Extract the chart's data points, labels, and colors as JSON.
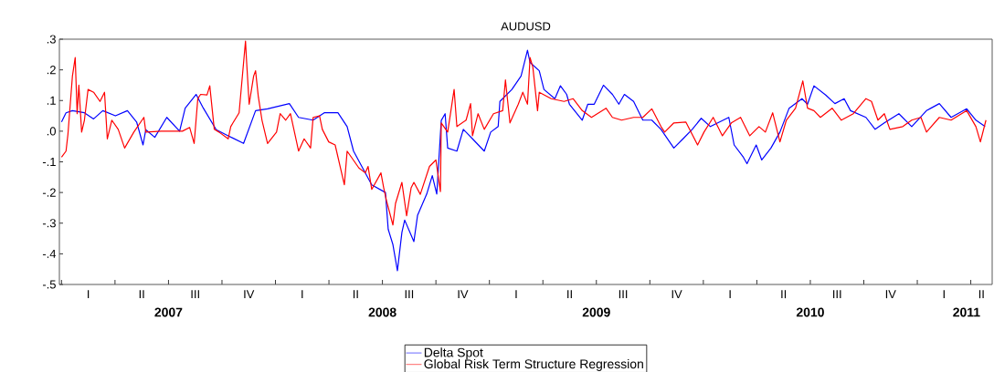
{
  "chart_data": {
    "type": "line",
    "title": "AUDUSD",
    "xlim": [
      2006.99,
      2011.35
    ],
    "ylim": [
      -0.5,
      0.3
    ],
    "yticks": [
      {
        "value": 0.3,
        "label": ".3"
      },
      {
        "value": 0.2,
        "label": ".2"
      },
      {
        "value": 0.1,
        "label": ".1"
      },
      {
        "value": 0.0,
        "label": ".0"
      },
      {
        "value": -0.1,
        "label": "-.1"
      },
      {
        "value": -0.2,
        "label": "-.2"
      },
      {
        "value": -0.3,
        "label": "-.3"
      },
      {
        "value": -0.4,
        "label": "-.4"
      },
      {
        "value": -0.5,
        "label": "-.5"
      }
    ],
    "xticks": [
      {
        "value": 2007.5,
        "label": "2007"
      },
      {
        "value": 2008.5,
        "label": "2008"
      },
      {
        "value": 2009.5,
        "label": "2009"
      },
      {
        "value": 2010.5,
        "label": "2010"
      },
      {
        "value": 2011.23,
        "label": "2011"
      },
      {
        "value": 2007.0,
        "label": null
      },
      {
        "value": 2007.25,
        "label": null
      },
      {
        "value": 2007.75,
        "label": null
      },
      {
        "value": 2008.0,
        "label": null
      },
      {
        "value": 2008.25,
        "label": null
      },
      {
        "value": 2008.75,
        "label": null
      },
      {
        "value": 2009.0,
        "label": null
      },
      {
        "value": 2009.25,
        "label": null
      },
      {
        "value": 2009.75,
        "label": null
      },
      {
        "value": 2010.0,
        "label": null
      },
      {
        "value": 2010.25,
        "label": null
      },
      {
        "value": 2010.75,
        "label": null
      },
      {
        "value": 2011.0,
        "label": null
      },
      {
        "value": 2011.25,
        "label": null
      },
      {
        "value": 2007.5,
        "label": null
      },
      {
        "value": 2008.5,
        "label": null
      },
      {
        "value": 2009.5,
        "label": null
      },
      {
        "value": 2010.5,
        "label": null
      }
    ],
    "annotations": [
      "I",
      "II",
      "III",
      "IV",
      "I",
      "II",
      "III",
      "IV",
      "I",
      "II",
      "III",
      "IV",
      "I",
      "II",
      "III",
      "IV",
      "I",
      "II"
    ],
    "legend": "bottom",
    "line_style": "solid",
    "series": [
      {
        "name": "Delta Spot",
        "color": "#0000ff",
        "x": [
          2007.0,
          2007.021,
          2007.051,
          2007.107,
          2007.15,
          2007.193,
          2007.252,
          2007.308,
          2007.351,
          2007.381,
          2007.394,
          2007.436,
          2007.492,
          2007.552,
          2007.578,
          2007.629,
          2007.663,
          2007.723,
          2007.779,
          2007.851,
          2007.907,
          2007.963,
          2008.065,
          2008.108,
          2008.176,
          2008.228,
          2008.292,
          2008.335,
          2008.365,
          2008.45,
          2008.514,
          2008.527,
          2008.549,
          2008.57,
          2008.591,
          2008.604,
          2008.647,
          2008.664,
          2008.707,
          2008.733,
          2008.754,
          2008.775,
          2008.793,
          2008.805,
          2008.848,
          2008.878,
          2008.921,
          2008.976,
          2009.006,
          2009.041,
          2009.049,
          2009.105,
          2009.148,
          2009.178,
          2009.19,
          2009.233,
          2009.255,
          2009.306,
          2009.332,
          2009.361,
          2009.374,
          2009.434,
          2009.46,
          2009.49,
          2009.533,
          2009.575,
          2009.605,
          2009.631,
          2009.674,
          2009.717,
          2009.759,
          2009.802,
          2009.862,
          2009.905,
          2009.948,
          2009.99,
          2010.033,
          2010.076,
          2010.119,
          2010.144,
          2010.187,
          2010.204,
          2010.247,
          2010.273,
          2010.316,
          2010.358,
          2010.401,
          2010.461,
          2010.487,
          2010.517,
          2010.572,
          2010.615,
          2010.658,
          2010.688,
          2010.76,
          2010.803,
          2010.846,
          2010.914,
          2010.974,
          2011.043,
          2011.103,
          2011.158,
          2011.231,
          2011.274,
          2011.317
        ],
        "values": [
          0.03,
          0.06,
          0.067,
          0.06,
          0.04,
          0.067,
          0.05,
          0.067,
          0.03,
          -0.045,
          0.005,
          -0.02,
          0.045,
          0.0,
          0.075,
          0.12,
          0.075,
          0.005,
          -0.015,
          -0.04,
          0.067,
          0.073,
          0.09,
          0.045,
          0.036,
          0.06,
          0.06,
          0.015,
          -0.065,
          -0.175,
          -0.2,
          -0.32,
          -0.37,
          -0.455,
          -0.33,
          -0.29,
          -0.36,
          -0.275,
          -0.205,
          -0.145,
          -0.205,
          0.035,
          0.057,
          -0.055,
          -0.065,
          0.006,
          -0.025,
          -0.065,
          -0.003,
          0.015,
          0.097,
          0.136,
          0.18,
          0.264,
          0.224,
          0.197,
          0.136,
          0.106,
          0.148,
          0.12,
          0.088,
          0.036,
          0.088,
          0.088,
          0.15,
          0.12,
          0.088,
          0.12,
          0.097,
          0.036,
          0.036,
          0.006,
          -0.055,
          -0.025,
          0.006,
          0.042,
          0.015,
          0.03,
          0.045,
          -0.045,
          -0.085,
          -0.106,
          -0.045,
          -0.094,
          -0.055,
          -0.003,
          0.075,
          0.106,
          0.088,
          0.148,
          0.118,
          0.09,
          0.106,
          0.067,
          0.045,
          0.006,
          0.027,
          0.057,
          0.015,
          0.067,
          0.09,
          0.045,
          0.073,
          0.036,
          0.015
        ]
      },
      {
        "name": "Global Risk Term Structure Regression",
        "color": "#ff0000",
        "x": [
          2007.0,
          2007.021,
          2007.03,
          2007.051,
          2007.064,
          2007.073,
          2007.081,
          2007.094,
          2007.107,
          2007.124,
          2007.15,
          2007.18,
          2007.201,
          2007.214,
          2007.235,
          2007.265,
          2007.295,
          2007.338,
          2007.385,
          2007.394,
          2007.466,
          2007.565,
          2007.599,
          2007.62,
          2007.637,
          2007.65,
          2007.68,
          2007.693,
          2007.714,
          2007.736,
          2007.779,
          2007.791,
          2007.83,
          2007.86,
          2007.864,
          2007.877,
          2007.898,
          2007.907,
          2007.92,
          2007.937,
          2007.963,
          2008.005,
          2008.022,
          2008.048,
          2008.07,
          2008.108,
          2008.134,
          2008.164,
          2008.176,
          2008.206,
          2008.219,
          2008.249,
          2008.279,
          2008.322,
          2008.335,
          2008.39,
          2008.42,
          2008.433,
          2008.45,
          2008.493,
          2008.506,
          2008.519,
          2008.549,
          2008.561,
          2008.591,
          2008.613,
          2008.634,
          2008.647,
          2008.677,
          2008.72,
          2008.75,
          2008.771,
          2008.775,
          2008.805,
          2008.835,
          2008.848,
          2008.891,
          2008.912,
          2008.921,
          2008.947,
          2008.976,
          2009.019,
          2009.062,
          2009.075,
          2009.096,
          2009.135,
          2009.156,
          2009.178,
          2009.19,
          2009.203,
          2009.225,
          2009.233,
          2009.289,
          2009.349,
          2009.391,
          2009.434,
          2009.477,
          2009.545,
          2009.575,
          2009.618,
          2009.674,
          2009.717,
          2009.759,
          2009.802,
          2009.819,
          2009.862,
          2009.918,
          2009.973,
          2010.003,
          2010.046,
          2010.089,
          2010.131,
          2010.174,
          2010.217,
          2010.26,
          2010.29,
          2010.324,
          2010.358,
          2010.388,
          2010.431,
          2010.465,
          2010.487,
          2010.517,
          2010.547,
          2010.602,
          2010.645,
          2010.701,
          2010.76,
          2010.786,
          2010.816,
          2010.846,
          2010.872,
          2010.932,
          2010.974,
          2011.017,
          2011.043,
          2011.103,
          2011.158,
          2011.231,
          2011.274,
          2011.295,
          2011.321
        ],
        "values": [
          -0.085,
          -0.065,
          -0.01,
          0.18,
          0.24,
          0.057,
          0.15,
          -0.003,
          0.036,
          0.136,
          0.127,
          0.097,
          0.127,
          -0.025,
          0.036,
          0.006,
          -0.055,
          -0.003,
          0.045,
          -0.003,
          0.0,
          0.0,
          0.012,
          -0.04,
          0.106,
          0.12,
          0.118,
          0.148,
          0.006,
          -0.003,
          -0.025,
          0.015,
          0.06,
          0.294,
          0.24,
          0.088,
          0.18,
          0.197,
          0.112,
          0.036,
          -0.04,
          -0.003,
          0.057,
          0.036,
          0.057,
          -0.065,
          -0.025,
          -0.055,
          0.045,
          0.05,
          0.006,
          -0.035,
          -0.045,
          -0.175,
          -0.065,
          -0.12,
          -0.136,
          -0.115,
          -0.19,
          -0.136,
          -0.185,
          -0.227,
          -0.306,
          -0.236,
          -0.167,
          -0.276,
          -0.185,
          -0.167,
          -0.206,
          -0.115,
          -0.094,
          -0.197,
          0.027,
          -0.003,
          0.136,
          0.015,
          0.036,
          0.09,
          -0.015,
          0.057,
          0.006,
          0.057,
          0.067,
          0.167,
          0.027,
          0.088,
          0.127,
          0.088,
          0.24,
          0.209,
          0.067,
          0.127,
          0.106,
          0.097,
          0.106,
          0.067,
          0.045,
          0.075,
          0.045,
          0.036,
          0.045,
          0.045,
          0.073,
          0.015,
          -0.003,
          0.027,
          0.03,
          -0.045,
          -0.003,
          0.045,
          -0.015,
          0.027,
          0.045,
          -0.015,
          0.015,
          -0.003,
          0.06,
          -0.035,
          0.036,
          0.075,
          0.164,
          0.075,
          0.067,
          0.045,
          0.075,
          0.036,
          0.057,
          0.106,
          0.097,
          0.036,
          0.057,
          0.006,
          0.015,
          0.036,
          0.045,
          -0.003,
          0.045,
          0.036,
          0.067,
          0.015,
          -0.035,
          0.036
        ]
      }
    ]
  }
}
